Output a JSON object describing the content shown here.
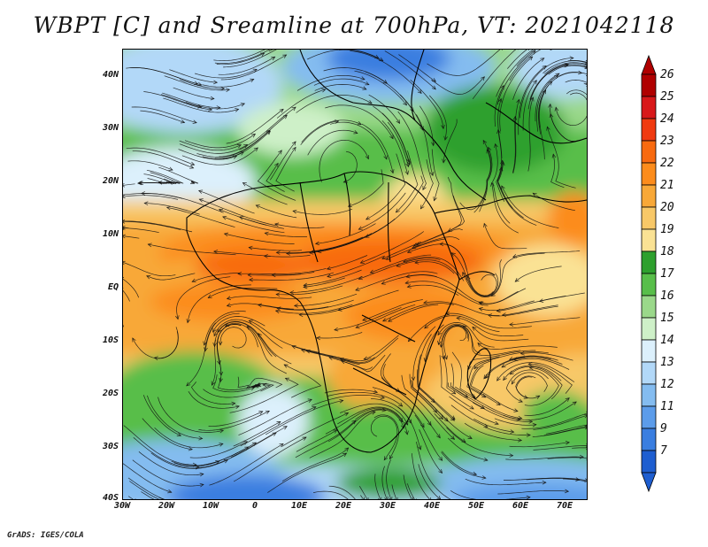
{
  "title": "WBPT [C] and Sreamline at 700hPa, VT: 2021042118",
  "credit": "GrADS: IGES/COLA",
  "map": {
    "lon_labels": [
      "30W",
      "20W",
      "10W",
      "0",
      "10E",
      "20E",
      "30E",
      "40E",
      "50E",
      "60E",
      "70E"
    ],
    "lat_labels": [
      "40N",
      "30N",
      "20N",
      "10N",
      "EQ",
      "10S",
      "20S",
      "30S",
      "40S"
    ],
    "lon_range": [
      -30,
      75
    ],
    "lat_range": [
      -40,
      45
    ]
  },
  "colorbar": {
    "labels": [
      "26",
      "25",
      "24",
      "23",
      "22",
      "21",
      "20",
      "19",
      "18",
      "17",
      "16",
      "15",
      "14",
      "13",
      "12",
      "11",
      "9",
      "7"
    ],
    "colors": [
      "#b00000",
      "#d8181a",
      "#f03a10",
      "#f86a10",
      "#fc8c1c",
      "#f8a838",
      "#f8c868",
      "#fae294",
      "#2ea02e",
      "#58be4a",
      "#9ad88a",
      "#cef0c8",
      "#dcf0fc",
      "#b2d8f8",
      "#84bcf0",
      "#5c9cea",
      "#3a7ee0",
      "#1e5ed0"
    ]
  },
  "colors": {
    "cold_deep": "#1e5ed0",
    "cold": "#84bcf0",
    "cool": "#cef0c8",
    "mild": "#58be4a",
    "warm": "#f8c868",
    "hot": "#f86a10"
  }
}
